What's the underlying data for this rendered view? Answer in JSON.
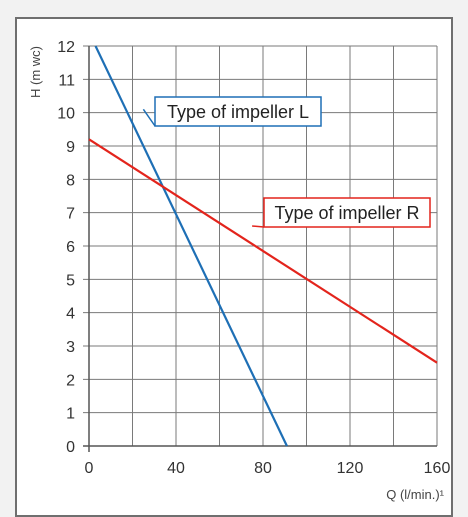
{
  "chart_data": {
    "type": "line",
    "xlabel": "Q (l/min.)¹",
    "ylabel": "H (m wc)",
    "xlim": [
      0,
      160
    ],
    "ylim": [
      0,
      12
    ],
    "grid": true,
    "x_ticks": [
      0,
      40,
      80,
      120,
      160
    ],
    "y_ticks": [
      0,
      1,
      2,
      3,
      4,
      5,
      6,
      7,
      8,
      9,
      10,
      11,
      12
    ],
    "series": [
      {
        "name": "Type of impeller L",
        "color": "#1e6fb5",
        "x": [
          3,
          91
        ],
        "y": [
          12,
          0
        ]
      },
      {
        "name": "Type of impeller R",
        "color": "#e3241c",
        "x": [
          0,
          160
        ],
        "y": [
          9.2,
          2.5
        ]
      }
    ],
    "annotations": [
      {
        "text": "Type of impeller L",
        "series": 0,
        "at": {
          "x": 25,
          "y": 10.1
        }
      },
      {
        "text": "Type of impeller R",
        "series": 1,
        "at": {
          "x": 75,
          "y": 6.6
        }
      }
    ]
  }
}
